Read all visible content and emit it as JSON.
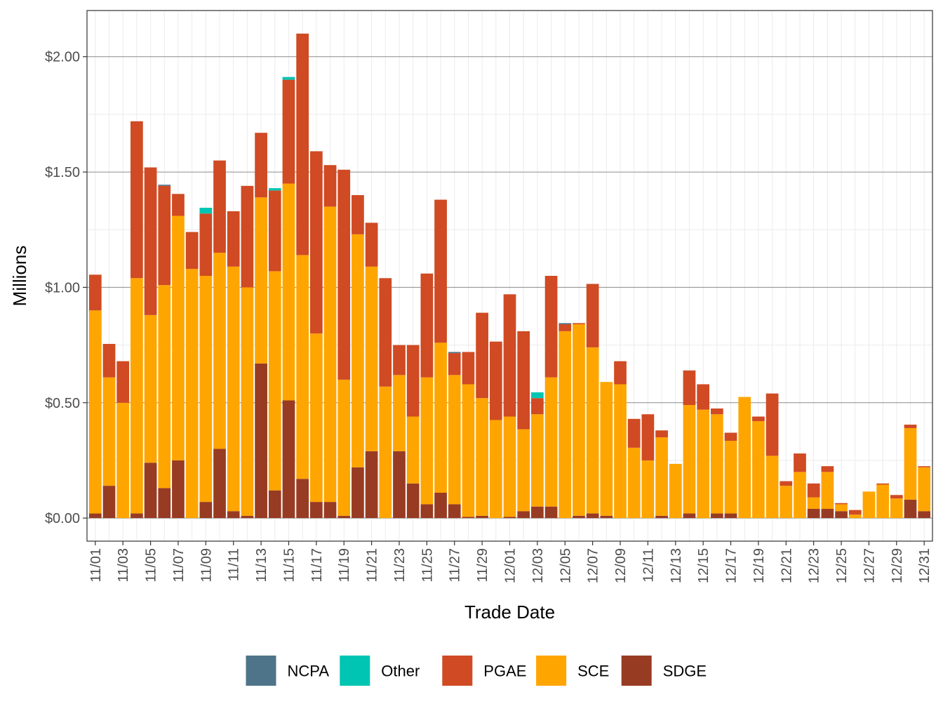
{
  "chart_data": {
    "type": "bar",
    "stacked": true,
    "title": "",
    "xlabel": "Trade Date",
    "ylabel": "Millions",
    "ylim": [
      -0.1,
      2.2
    ],
    "y_ticks": [
      0,
      0.5,
      1.0,
      1.5,
      2.0
    ],
    "y_tick_labels": [
      "$0.00",
      "$0.50",
      "$1.00",
      "$1.50",
      "$2.00"
    ],
    "grid": true,
    "legend_position": "bottom",
    "categories": [
      "11/01",
      "11/02",
      "11/03",
      "11/04",
      "11/05",
      "11/06",
      "11/07",
      "11/08",
      "11/09",
      "11/10",
      "11/11",
      "11/12",
      "11/13",
      "11/14",
      "11/15",
      "11/16",
      "11/17",
      "11/18",
      "11/19",
      "11/20",
      "11/21",
      "11/22",
      "11/23",
      "11/24",
      "11/25",
      "11/26",
      "11/27",
      "11/28",
      "11/29",
      "11/30",
      "12/01",
      "12/02",
      "12/03",
      "12/04",
      "12/05",
      "12/06",
      "12/07",
      "12/08",
      "12/09",
      "12/10",
      "12/11",
      "12/12",
      "12/13",
      "12/14",
      "12/15",
      "12/16",
      "12/17",
      "12/18",
      "12/19",
      "12/20",
      "12/21",
      "12/22",
      "12/23",
      "12/24",
      "12/25",
      "12/26",
      "12/27",
      "12/28",
      "12/29",
      "12/30",
      "12/31"
    ],
    "x_tick_labels": [
      "11/01",
      "11/03",
      "11/05",
      "11/07",
      "11/09",
      "11/11",
      "11/13",
      "11/15",
      "11/17",
      "11/19",
      "11/21",
      "11/23",
      "11/25",
      "11/27",
      "11/29",
      "12/01",
      "12/03",
      "12/05",
      "12/07",
      "12/09",
      "12/11",
      "12/13",
      "12/15",
      "12/17",
      "12/19",
      "12/21",
      "12/23",
      "12/25",
      "12/27",
      "12/29",
      "12/31"
    ],
    "series": [
      {
        "name": "SDGE",
        "color": "#983B23",
        "values": [
          0.02,
          0.14,
          0,
          0.02,
          0.24,
          0.13,
          0.25,
          0,
          0.07,
          0.3,
          0.03,
          0.01,
          0.67,
          0.12,
          0.51,
          0.17,
          0.07,
          0.07,
          0.01,
          0.22,
          0.29,
          0,
          0.29,
          0.15,
          0.06,
          0.11,
          0.06,
          0.005,
          0.01,
          0,
          0.005,
          0.03,
          0.05,
          0.05,
          0,
          0.01,
          0.02,
          0.01,
          0,
          0,
          0,
          0.01,
          0,
          0.02,
          0,
          0.02,
          0.02,
          0,
          0,
          0,
          0,
          0,
          0.04,
          0.04,
          0.03,
          0,
          0,
          0,
          0,
          0.08,
          0.03
        ]
      },
      {
        "name": "SCE",
        "color": "#FFA500",
        "values": [
          0.88,
          0.47,
          0.5,
          1.02,
          0.64,
          0.88,
          1.06,
          1.08,
          0.98,
          0.85,
          1.06,
          0.99,
          0.72,
          0.95,
          0.94,
          0.97,
          0.73,
          1.28,
          0.59,
          1.01,
          0.8,
          0.57,
          0.33,
          0.29,
          0.55,
          0.65,
          0.56,
          0.575,
          0.51,
          0.425,
          0.435,
          0.355,
          0.4,
          0.56,
          0.81,
          0.83,
          0.72,
          0.58,
          0.58,
          0.305,
          0.25,
          0.34,
          0.235,
          0.47,
          0.47,
          0.43,
          0.315,
          0.525,
          0.42,
          0.27,
          0.14,
          0.2,
          0.05,
          0.16,
          0.03,
          0.015,
          0.115,
          0.145,
          0.085,
          0.31,
          0.19
        ]
      },
      {
        "name": "PGAE",
        "color": "#D04A23",
        "values": [
          0.155,
          0.145,
          0.18,
          0.68,
          0.64,
          0.43,
          0.095,
          0.16,
          0.27,
          0.4,
          0.24,
          0.44,
          0.28,
          0.35,
          0.45,
          0.96,
          0.79,
          0.18,
          0.91,
          0.17,
          0.19,
          0.47,
          0.13,
          0.31,
          0.45,
          0.62,
          0.095,
          0.14,
          0.37,
          0.34,
          0.53,
          0.425,
          0.07,
          0.44,
          0.03,
          0.005,
          0.275,
          0,
          0.1,
          0.125,
          0.2,
          0.03,
          0,
          0.15,
          0.11,
          0.025,
          0.035,
          0,
          0.02,
          0.27,
          0.02,
          0.08,
          0.06,
          0.025,
          0.005,
          0.02,
          0,
          0.005,
          0.015,
          0.015,
          0.005
        ]
      },
      {
        "name": "Other",
        "color": "#00C5B3",
        "values": [
          0,
          0,
          0,
          0,
          0,
          0,
          0,
          0,
          0.025,
          0,
          0,
          0,
          0,
          0.01,
          0.012,
          0,
          0,
          0,
          0,
          0,
          0,
          0,
          0,
          0,
          0,
          0,
          0,
          0,
          0,
          0,
          0,
          0,
          0.025,
          0,
          0,
          0,
          0,
          0,
          0,
          0,
          0,
          0,
          0,
          0,
          0,
          0,
          0,
          0,
          0,
          0,
          0,
          0,
          0,
          0,
          0,
          0,
          0,
          0,
          0,
          0,
          0
        ]
      },
      {
        "name": "NCPA",
        "color": "#4E7489",
        "values": [
          0,
          0,
          0,
          0,
          0,
          0.005,
          0,
          0,
          0,
          0,
          0,
          0,
          0,
          0,
          0,
          0,
          0,
          0,
          0,
          0,
          0,
          0,
          0,
          0,
          0,
          0,
          0.005,
          0,
          0,
          0,
          0,
          0,
          0,
          0,
          0.005,
          0,
          0,
          0,
          0,
          0,
          0,
          0,
          0,
          0,
          0,
          0,
          0,
          0,
          0,
          0,
          0,
          0,
          0,
          0,
          0,
          0,
          0,
          0,
          0,
          0,
          0
        ]
      }
    ],
    "legend": [
      {
        "name": "NCPA",
        "color": "#4E7489"
      },
      {
        "name": "Other",
        "color": "#00C5B3"
      },
      {
        "name": "PGAE",
        "color": "#D04A23"
      },
      {
        "name": "SCE",
        "color": "#FFA500"
      },
      {
        "name": "SDGE",
        "color": "#983B23"
      }
    ]
  }
}
